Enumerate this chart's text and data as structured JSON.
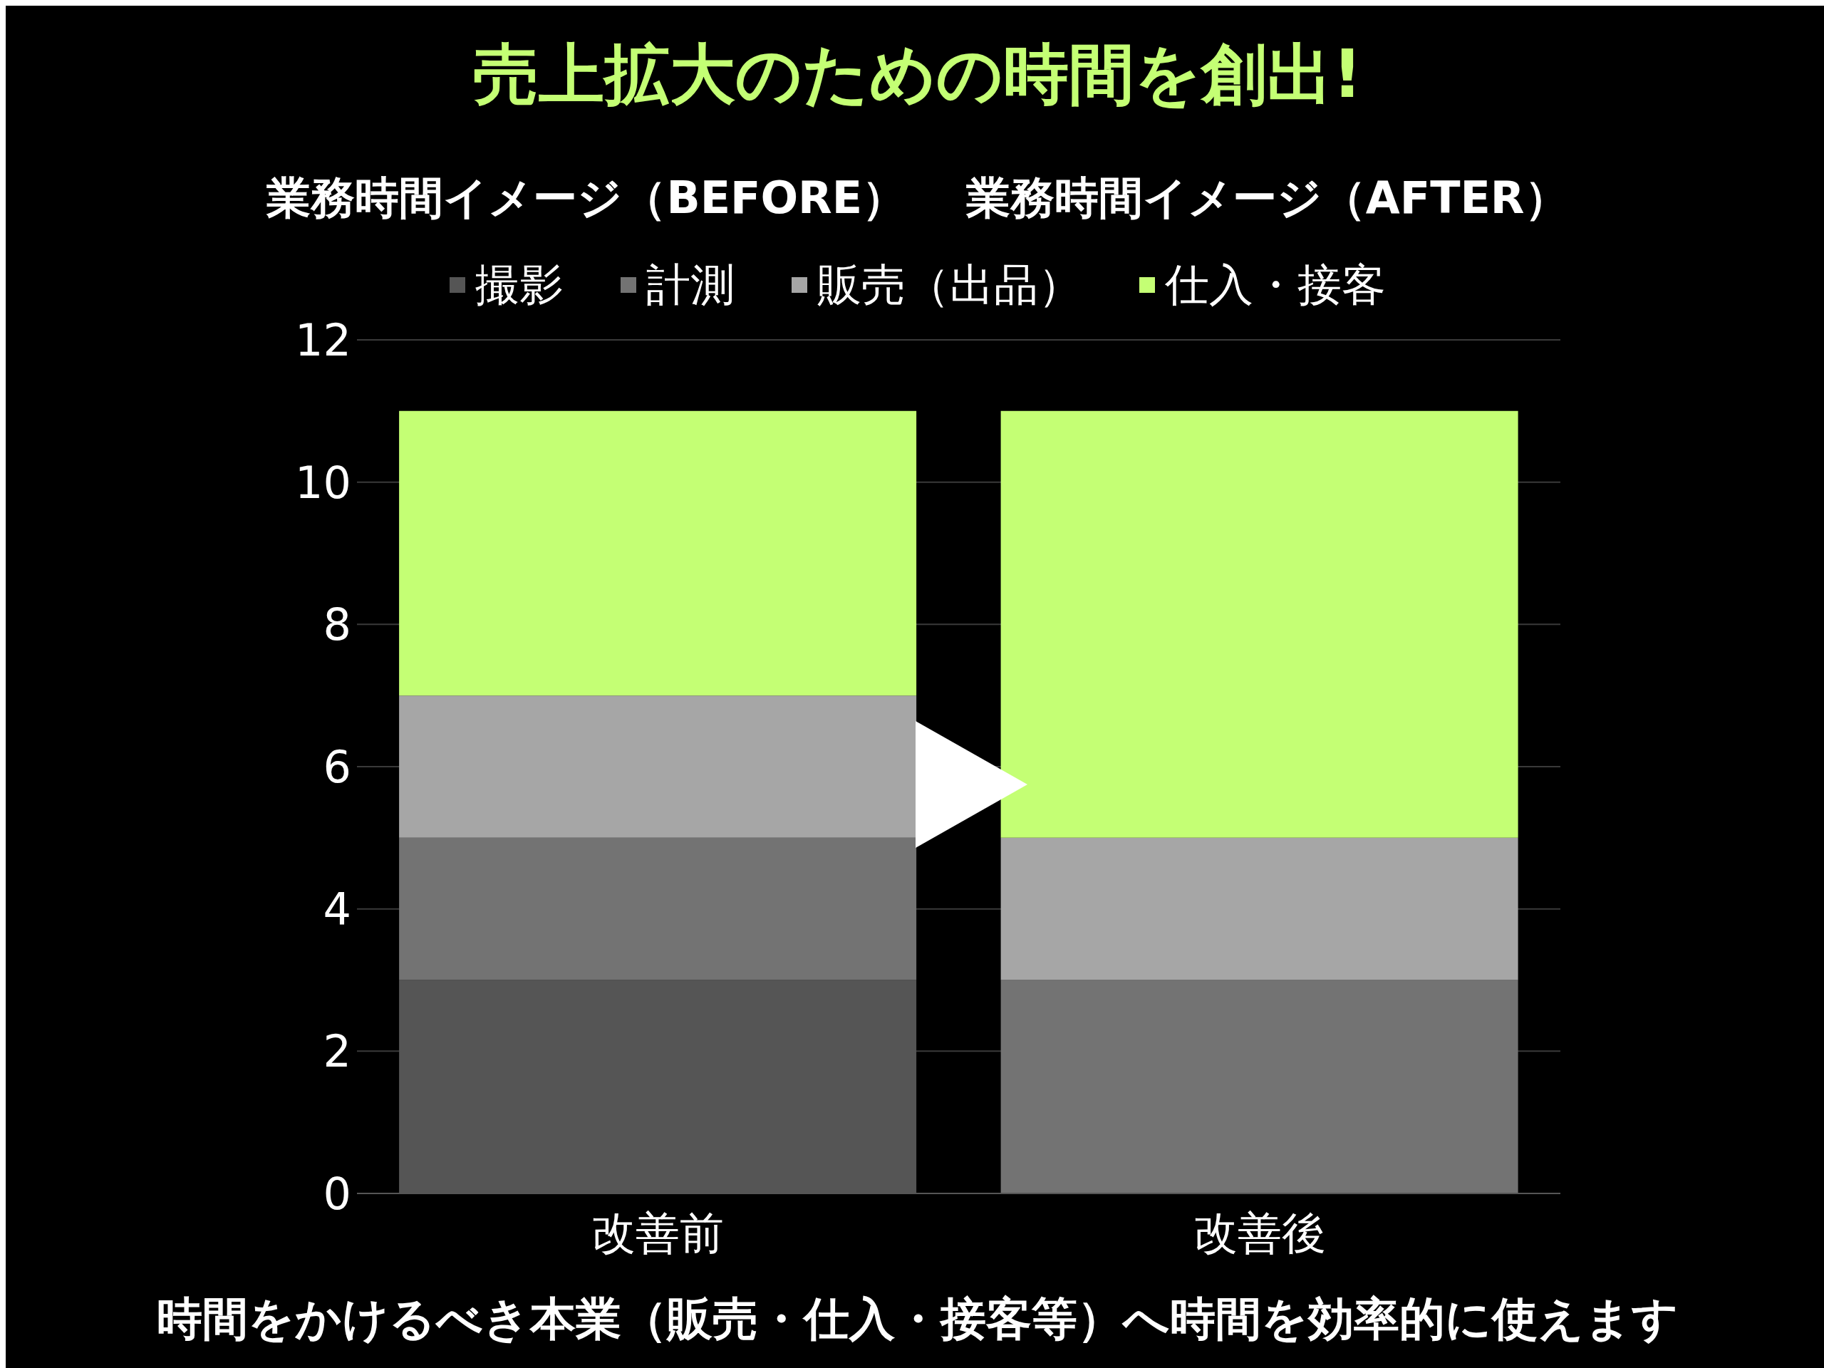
{
  "chart_data": {
    "type": "bar",
    "title": "売上拡大のための時間を創出!",
    "subtitle": "業務時間イメージ（BEFORE）　 業務時間イメージ（AFTER）",
    "categories": [
      "改善前",
      "改善後"
    ],
    "stacked": true,
    "series": [
      {
        "name": "撮影",
        "color": "#555555",
        "values": [
          3,
          0
        ]
      },
      {
        "name": "計測",
        "color": "#737373",
        "values": [
          2,
          3
        ]
      },
      {
        "name": "販売（出品）",
        "color": "#a6a6a6",
        "values": [
          2,
          2
        ]
      },
      {
        "name": "仕入・接客",
        "color": "#c4ff74",
        "values": [
          4,
          6
        ]
      }
    ],
    "ylim": [
      0,
      12
    ],
    "yticks": [
      0,
      2,
      4,
      6,
      8,
      10,
      12
    ],
    "grid": "y",
    "legend": "top",
    "marker": "square",
    "annotations": [
      "時間をかけるべき本業（販売・仕入・接客等）へ時間を効率的に使えます"
    ]
  }
}
